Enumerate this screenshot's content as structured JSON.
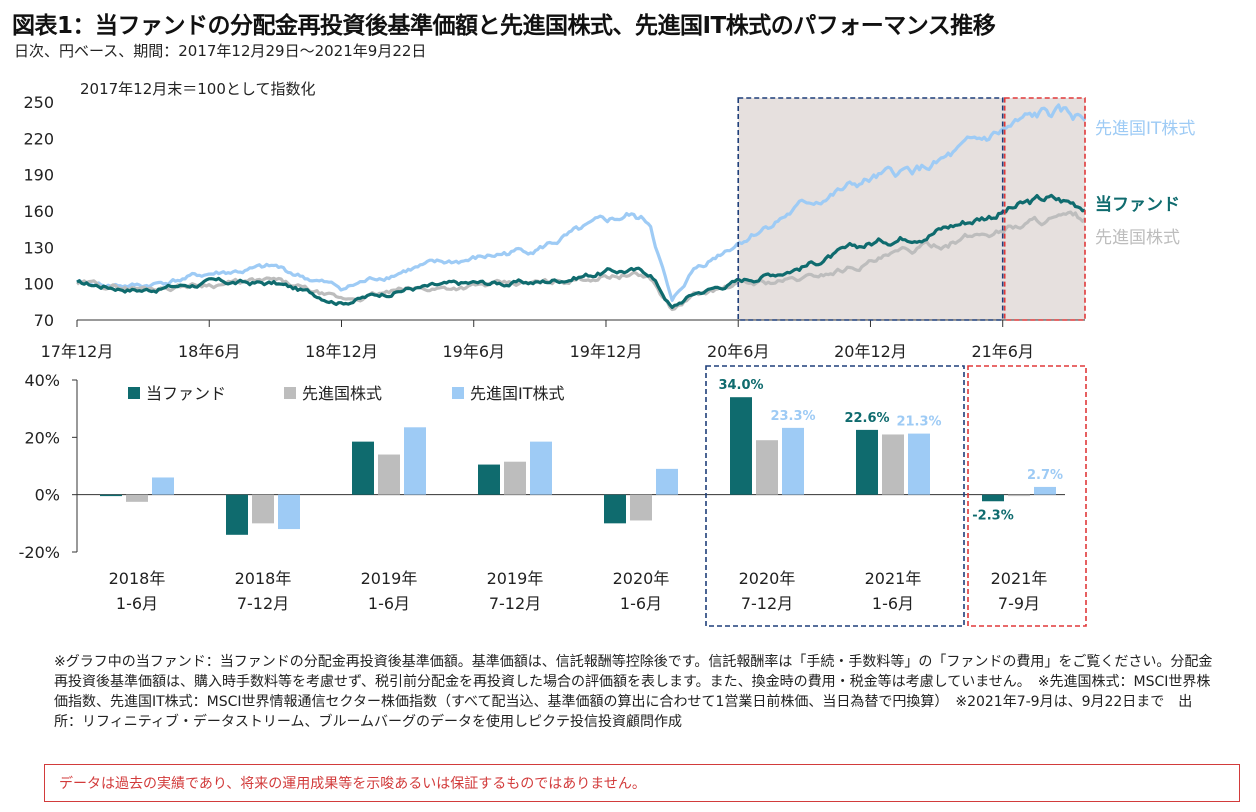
{
  "title": "図表1：当ファンドの分配金再投資後基準価額と先進国株式、先進国IT株式のパフォーマンス推移",
  "subtitle": "日次、円ベース、期間：2017年12月29日～2021年9月22日",
  "notes": "※グラフ中の当ファンド：当ファンドの分配金再投資後基準価額。基準価額は、信託報酬等控除後です。信託報酬率は「手続・手数料等」の「ファンドの費用」をご覧ください。分配金再投資後基準価額は、購入時手数料等を考慮せず、税引前分配金を再投資した場合の評価額を表します。また、換金時の費用・税金等は考慮していません。　※先進国株式：MSCI世界株価指数、先進国IT株式：MSCI世界情報通信セクター株価指数（すべて配当込、基準価額の算出に合わせて1営業日前株価、当日為替で円換算）　※2021年7-9月は、9月22日まで　出所：リフィニティブ・データストリーム、ブルームバーグのデータを使用しピクテ投信投資顧問作成",
  "disclaimer": "データは過去の実績であり、将来の運用成果等を示唆あるいは保証するものではありません。",
  "colors": {
    "fund": "#0f6b6e",
    "dev": "#bdbdbd",
    "it": "#9ecbf5",
    "navy_box": "#1f3f7a",
    "red_box": "#e0393a",
    "shade": "#e6e0de"
  },
  "chart_data": [
    {
      "type": "line",
      "note": "2017年12月末＝100として指数化",
      "ylim": [
        70,
        250
      ],
      "yticks": [
        70,
        100,
        130,
        160,
        190,
        220,
        250
      ],
      "xticks": [
        "17年12月",
        "18年6月",
        "18年12月",
        "19年6月",
        "19年12月",
        "20年6月",
        "20年12月",
        "21年6月"
      ],
      "x_months": [
        "2017-12",
        "2018-03",
        "2018-06",
        "2018-09",
        "2018-12",
        "2019-03",
        "2019-06",
        "2019-09",
        "2019-12",
        "2020-01",
        "2020-02",
        "2020-03",
        "2020-04",
        "2020-06",
        "2020-09",
        "2020-12",
        "2021-03",
        "2021-06",
        "2021-08",
        "2021-09"
      ],
      "series": [
        {
          "name": "当ファンド",
          "color": "#0f6b6e",
          "values": [
            100,
            95,
            101,
            100,
            85,
            96,
            100,
            101,
            110,
            111,
            109,
            80,
            92,
            102,
            115,
            133,
            145,
            160,
            170,
            165
          ]
        },
        {
          "name": "先進国株式",
          "color": "#bdbdbd",
          "values": [
            100,
            96,
            100,
            102,
            86,
            95,
            98,
            100,
            107,
            108,
            105,
            78,
            90,
            99,
            104,
            118,
            132,
            145,
            154,
            152
          ]
        },
        {
          "name": "先進国IT株式",
          "color": "#9ecbf5",
          "values": [
            100,
            98,
            108,
            113,
            96,
            112,
            120,
            130,
            150,
            156,
            150,
            84,
            112,
            135,
            165,
            185,
            198,
            225,
            240,
            236
          ]
        }
      ],
      "highlight_ranges": [
        [
          "2020-06",
          "2021-06"
        ],
        [
          "2021-06",
          "2021-09"
        ]
      ]
    },
    {
      "type": "bar",
      "ylim": [
        -20,
        40
      ],
      "yticks": [
        "-20%",
        "0%",
        "20%",
        "40%"
      ],
      "categories": [
        [
          "2018年",
          "1-6月"
        ],
        [
          "2018年",
          "7-12月"
        ],
        [
          "2019年",
          "1-6月"
        ],
        [
          "2019年",
          "7-12月"
        ],
        [
          "2020年",
          "1-6月"
        ],
        [
          "2020年",
          "7-12月"
        ],
        [
          "2021年",
          "1-6月"
        ],
        [
          "2021年",
          "7-9月"
        ]
      ],
      "series": [
        {
          "name": "当ファンド",
          "color": "#0f6b6e",
          "values": [
            -0.5,
            -14,
            18.5,
            10.5,
            -10,
            34.0,
            22.6,
            -2.3
          ]
        },
        {
          "name": "先進国株式",
          "color": "#bdbdbd",
          "values": [
            -2.5,
            -10,
            14,
            11.5,
            -9,
            19,
            21,
            -0.5
          ]
        },
        {
          "name": "先進国IT株式",
          "color": "#9ecbf5",
          "values": [
            6,
            -12,
            23.5,
            18.5,
            9,
            23.3,
            21.3,
            2.7
          ]
        }
      ],
      "data_labels": [
        {
          "cat": 5,
          "series": 0,
          "text": "34.0%"
        },
        {
          "cat": 5,
          "series": 2,
          "text": "23.3%"
        },
        {
          "cat": 6,
          "series": 0,
          "text": "22.6%"
        },
        {
          "cat": 6,
          "series": 2,
          "text": "21.3%"
        },
        {
          "cat": 7,
          "series": 0,
          "text": "-2.3%"
        },
        {
          "cat": 7,
          "series": 2,
          "text": "2.7%"
        }
      ]
    }
  ]
}
